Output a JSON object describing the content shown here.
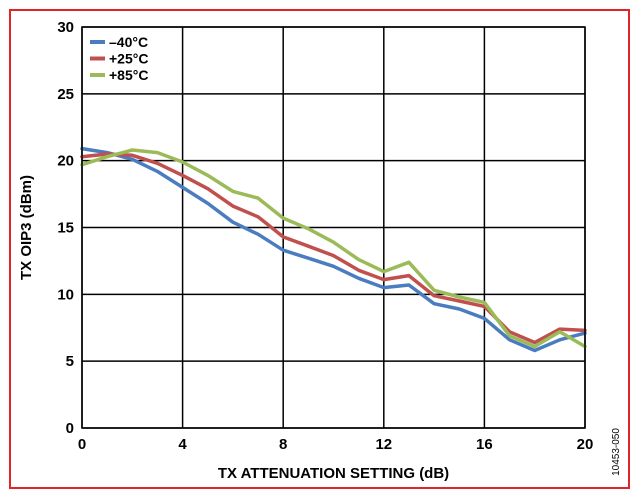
{
  "figure_id": "10453-050",
  "chart_data": {
    "type": "line",
    "title": "",
    "xlabel": "TX ATTENUATION SETTING (dB)",
    "ylabel": "TX OIP3 (dBm)",
    "xlim": [
      0,
      20
    ],
    "ylim": [
      0,
      30
    ],
    "xticks": [
      0,
      4,
      8,
      12,
      16,
      20
    ],
    "yticks": [
      0,
      5,
      10,
      15,
      20,
      25,
      30
    ],
    "grid": true,
    "legend_position": "top-left",
    "x": [
      0,
      1,
      2,
      3,
      4,
      5,
      6,
      7,
      8,
      9,
      10,
      11,
      12,
      13,
      14,
      15,
      16,
      17,
      18,
      19,
      20
    ],
    "series": [
      {
        "name": "–40°C",
        "color": "#4a7cc0",
        "values": [
          20.9,
          20.6,
          20.1,
          19.2,
          18.0,
          16.8,
          15.4,
          14.5,
          13.3,
          12.7,
          12.1,
          11.2,
          10.5,
          10.7,
          9.3,
          8.9,
          8.2,
          6.6,
          5.8,
          6.6,
          7.1
        ]
      },
      {
        "name": "+25°C",
        "color": "#c0504d",
        "values": [
          20.3,
          20.5,
          20.4,
          19.8,
          18.9,
          17.9,
          16.6,
          15.8,
          14.3,
          13.6,
          12.9,
          11.8,
          11.1,
          11.4,
          9.9,
          9.5,
          9.1,
          7.2,
          6.4,
          7.4,
          7.3
        ]
      },
      {
        "name": "+85°C",
        "color": "#9bbb59",
        "values": [
          19.7,
          20.3,
          20.8,
          20.6,
          19.9,
          18.9,
          17.7,
          17.2,
          15.7,
          14.9,
          13.9,
          12.6,
          11.7,
          12.4,
          10.3,
          9.8,
          9.4,
          6.9,
          6.1,
          7.2,
          6.1
        ]
      }
    ]
  }
}
